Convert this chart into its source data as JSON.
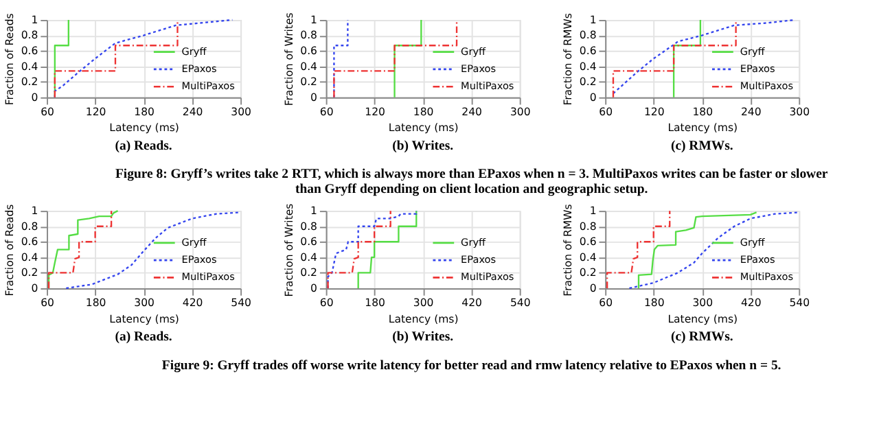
{
  "chart_data": [
    {
      "type": "line",
      "title": "(a) Reads.",
      "xlabel": "Latency (ms)",
      "ylabel": "Fraction of Reads",
      "xlim": [
        60,
        300
      ],
      "xticks": [
        60,
        120,
        180,
        240,
        300
      ],
      "ylim": [
        0,
        1
      ],
      "yticks": [
        0,
        0.2,
        0.4,
        0.6,
        0.8,
        1
      ],
      "grid": true,
      "legend": "bottom right",
      "series": [
        {
          "name": "Gryff",
          "color": "#55dd44",
          "line_style": "solid",
          "x": [
            70,
            70,
            87,
            87
          ],
          "values": [
            0,
            0.67,
            0.67,
            1
          ]
        },
        {
          "name": "EPaxos",
          "color": "#3344ee",
          "line_style": "dotted",
          "x": [
            70,
            70,
            80,
            100,
            120,
            145,
            180,
            220,
            250,
            290
          ],
          "values": [
            0,
            0.08,
            0.15,
            0.33,
            0.5,
            0.7,
            0.8,
            0.93,
            0.96,
            1
          ]
        },
        {
          "name": "MultiPaxos",
          "color": "#ee3333",
          "line_style": "dashed",
          "x": [
            70,
            70,
            145,
            145,
            222,
            222
          ],
          "values": [
            0,
            0.34,
            0.34,
            0.67,
            0.67,
            1
          ]
        }
      ]
    },
    {
      "type": "line",
      "title": "(b) Writes.",
      "xlabel": "Latency (ms)",
      "ylabel": "Fraction of Writes",
      "xlim": [
        60,
        300
      ],
      "xticks": [
        60,
        120,
        180,
        240,
        300
      ],
      "ylim": [
        0,
        1
      ],
      "yticks": [
        0,
        0.2,
        0.4,
        0.6,
        0.8,
        1
      ],
      "grid": true,
      "legend": "bottom right",
      "series": [
        {
          "name": "Gryff",
          "color": "#55dd44",
          "line_style": "solid",
          "x": [
            145,
            145,
            178,
            178
          ],
          "values": [
            0,
            0.67,
            0.67,
            1
          ]
        },
        {
          "name": "EPaxos",
          "color": "#3344ee",
          "line_style": "dotted",
          "x": [
            70,
            70,
            87,
            87
          ],
          "values": [
            0,
            0.67,
            0.67,
            1
          ]
        },
        {
          "name": "MultiPaxos",
          "color": "#ee3333",
          "line_style": "dashed",
          "x": [
            70,
            70,
            145,
            145,
            222,
            222
          ],
          "values": [
            0,
            0.34,
            0.34,
            0.67,
            0.67,
            1
          ]
        }
      ]
    },
    {
      "type": "line",
      "title": "(c) RMWs.",
      "xlabel": "Latency (ms)",
      "ylabel": "Fraction of RMWs",
      "xlim": [
        60,
        300
      ],
      "xticks": [
        60,
        120,
        180,
        240,
        300
      ],
      "ylim": [
        0,
        1
      ],
      "yticks": [
        0,
        0.2,
        0.4,
        0.6,
        0.8,
        1
      ],
      "grid": true,
      "legend": "bottom right",
      "annotations": [
        "Figure 8: Gryff’s writes take 2 RTT, which is always more than EPaxos when n = 3. MultiPaxos writes can be faster or slower than Gryff depending on client location and geographic setup."
      ],
      "series": [
        {
          "name": "Gryff",
          "color": "#55dd44",
          "line_style": "solid",
          "x": [
            145,
            145,
            178,
            178
          ],
          "values": [
            0,
            0.67,
            0.67,
            1
          ]
        },
        {
          "name": "EPaxos",
          "color": "#3344ee",
          "line_style": "dotted",
          "x": [
            70,
            100,
            120,
            145,
            150,
            180,
            220,
            260,
            295
          ],
          "values": [
            0.05,
            0.33,
            0.5,
            0.68,
            0.72,
            0.8,
            0.93,
            0.96,
            1
          ]
        },
        {
          "name": "MultiPaxos",
          "color": "#ee3333",
          "line_style": "dashed",
          "x": [
            70,
            70,
            145,
            145,
            222,
            222
          ],
          "values": [
            0,
            0.34,
            0.34,
            0.67,
            0.67,
            1
          ]
        }
      ]
    },
    {
      "type": "line",
      "title": "(a) Reads.",
      "xlabel": "Latency (ms)",
      "ylabel": "Fraction of Reads",
      "xlim": [
        60,
        540
      ],
      "xticks": [
        60,
        180,
        300,
        420,
        540
      ],
      "ylim": [
        0,
        1
      ],
      "yticks": [
        0,
        0.2,
        0.4,
        0.6,
        0.8,
        1
      ],
      "grid": true,
      "legend": "bottom right",
      "series": [
        {
          "name": "Gryff",
          "color": "#55dd44",
          "line_style": "solid",
          "x": [
            65,
            65,
            75,
            80,
            87,
            115,
            115,
            137,
            137,
            165,
            190,
            220,
            225,
            236
          ],
          "values": [
            0,
            0.17,
            0.2,
            0.33,
            0.5,
            0.5,
            0.68,
            0.7,
            0.88,
            0.9,
            0.93,
            0.93,
            0.97,
            1
          ]
        },
        {
          "name": "EPaxos",
          "color": "#3344ee",
          "line_style": "dotted",
          "x": [
            108,
            172,
            236,
            270,
            300,
            330,
            360,
            420,
            480,
            540
          ],
          "values": [
            0,
            0.05,
            0.18,
            0.3,
            0.48,
            0.65,
            0.78,
            0.9,
            0.96,
            0.98
          ]
        },
        {
          "name": "MultiPaxos",
          "color": "#ee3333",
          "line_style": "dashed",
          "x": [
            65,
            65,
            125,
            130,
            140,
            140,
            180,
            180,
            220,
            220
          ],
          "values": [
            0,
            0.2,
            0.2,
            0.38,
            0.4,
            0.6,
            0.6,
            0.8,
            0.8,
            1
          ]
        }
      ]
    },
    {
      "type": "line",
      "title": "(b) Writes.",
      "xlabel": "Latency (ms)",
      "ylabel": "Fraction of Writes",
      "xlim": [
        60,
        540
      ],
      "xticks": [
        60,
        180,
        300,
        420,
        540
      ],
      "ylim": [
        0,
        1
      ],
      "yticks": [
        0,
        0.2,
        0.4,
        0.6,
        0.8,
        1
      ],
      "grid": true,
      "legend": "bottom right",
      "series": [
        {
          "name": "Gryff",
          "color": "#55dd44",
          "line_style": "solid",
          "x": [
            140,
            140,
            170,
            173,
            180,
            180,
            240,
            240,
            284,
            284
          ],
          "values": [
            0,
            0.2,
            0.2,
            0.4,
            0.4,
            0.6,
            0.6,
            0.8,
            0.8,
            1
          ]
        },
        {
          "name": "EPaxos",
          "color": "#3344ee",
          "line_style": "dotted",
          "x": [
            65,
            65,
            75,
            85,
            110,
            115,
            140,
            140,
            180,
            185,
            220,
            240,
            245,
            284,
            284
          ],
          "values": [
            0,
            0.15,
            0.2,
            0.45,
            0.5,
            0.6,
            0.6,
            0.8,
            0.8,
            0.9,
            0.9,
            0.93,
            0.96,
            0.96,
            1
          ]
        },
        {
          "name": "MultiPaxos",
          "color": "#ee3333",
          "line_style": "dashed",
          "x": [
            65,
            65,
            125,
            130,
            140,
            140,
            180,
            180,
            220,
            220
          ],
          "values": [
            0,
            0.2,
            0.2,
            0.38,
            0.4,
            0.6,
            0.6,
            0.8,
            0.8,
            1
          ]
        }
      ]
    },
    {
      "type": "line",
      "title": "(c) RMWs.",
      "xlabel": "Latency (ms)",
      "ylabel": "Fraction of RMWs",
      "xlim": [
        60,
        540
      ],
      "xticks": [
        60,
        180,
        300,
        420,
        540
      ],
      "ylim": [
        0,
        1
      ],
      "yticks": [
        0,
        0.2,
        0.4,
        0.6,
        0.8,
        1
      ],
      "grid": true,
      "legend": "bottom right",
      "annotations": [
        "Figure 9: Gryff trades off worse write latency for better read and rmw latency relative to EPaxos when n = 5."
      ],
      "series": [
        {
          "name": "Gryff",
          "color": "#55dd44",
          "line_style": "solid",
          "x": [
            143,
            143,
            175,
            178,
            182,
            190,
            235,
            235,
            260,
            280,
            285,
            300,
            420,
            435
          ],
          "values": [
            0,
            0.17,
            0.18,
            0.35,
            0.5,
            0.55,
            0.56,
            0.73,
            0.75,
            0.78,
            0.92,
            0.93,
            0.95,
            0.98
          ]
        },
        {
          "name": "EPaxos",
          "color": "#3344ee",
          "line_style": "dotted",
          "x": [
            120,
            180,
            240,
            280,
            300,
            340,
            380,
            420,
            480,
            540
          ],
          "values": [
            0,
            0.07,
            0.2,
            0.33,
            0.45,
            0.65,
            0.8,
            0.9,
            0.96,
            0.98
          ]
        },
        {
          "name": "MultiPaxos",
          "color": "#ee3333",
          "line_style": "dashed",
          "x": [
            65,
            65,
            125,
            130,
            140,
            140,
            180,
            180,
            220,
            220
          ],
          "values": [
            0,
            0.2,
            0.2,
            0.38,
            0.4,
            0.6,
            0.6,
            0.8,
            0.8,
            1
          ]
        }
      ]
    }
  ]
}
